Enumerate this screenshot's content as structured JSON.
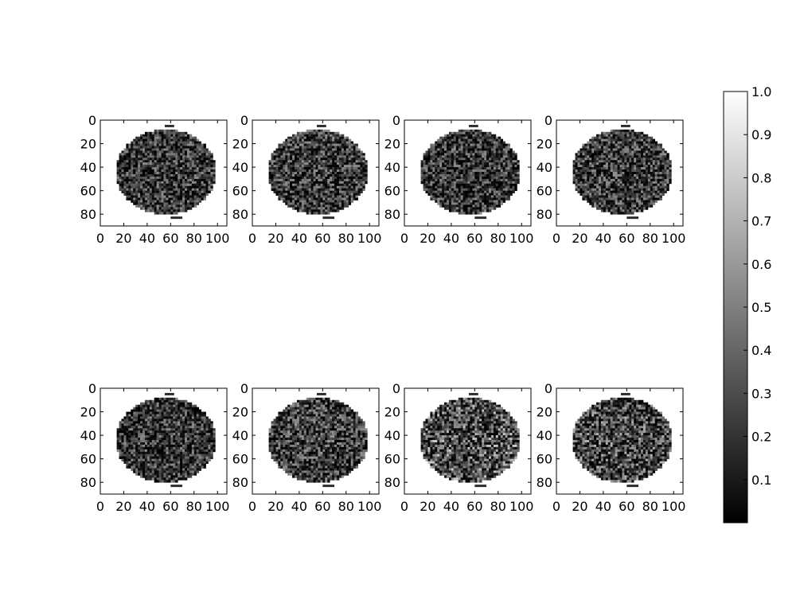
{
  "chart_data": {
    "type": "heatmap",
    "colormap": "gray",
    "layout": {
      "rows": 2,
      "cols": 4
    },
    "panels": [
      {
        "index": 1,
        "xlim": [
          0,
          108
        ],
        "ylim": [
          90,
          0
        ],
        "xticks": [
          0,
          20,
          40,
          60,
          80,
          100
        ],
        "yticks": [
          0,
          20,
          40,
          60,
          80
        ],
        "mean_intensity": 0.22
      },
      {
        "index": 2,
        "xlim": [
          0,
          108
        ],
        "ylim": [
          90,
          0
        ],
        "xticks": [
          0,
          20,
          40,
          60,
          80,
          100
        ],
        "yticks": [
          0,
          20,
          40,
          60,
          80
        ],
        "mean_intensity": 0.24
      },
      {
        "index": 3,
        "xlim": [
          0,
          108
        ],
        "ylim": [
          90,
          0
        ],
        "xticks": [
          0,
          20,
          40,
          60,
          80,
          100
        ],
        "yticks": [
          0,
          20,
          40,
          60,
          80
        ],
        "mean_intensity": 0.22
      },
      {
        "index": 4,
        "xlim": [
          0,
          108
        ],
        "ylim": [
          90,
          0
        ],
        "xticks": [
          0,
          20,
          40,
          60,
          80,
          100
        ],
        "yticks": [
          0,
          20,
          40,
          60,
          80
        ],
        "mean_intensity": 0.24
      },
      {
        "index": 5,
        "xlim": [
          0,
          108
        ],
        "ylim": [
          90,
          0
        ],
        "xticks": [
          0,
          20,
          40,
          60,
          80,
          100
        ],
        "yticks": [
          0,
          20,
          40,
          60,
          80
        ],
        "mean_intensity": 0.21
      },
      {
        "index": 6,
        "xlim": [
          0,
          108
        ],
        "ylim": [
          90,
          0
        ],
        "xticks": [
          0,
          20,
          40,
          60,
          80,
          100
        ],
        "yticks": [
          0,
          20,
          40,
          60,
          80
        ],
        "mean_intensity": 0.26
      },
      {
        "index": 7,
        "xlim": [
          0,
          108
        ],
        "ylim": [
          90,
          0
        ],
        "xticks": [
          0,
          20,
          40,
          60,
          80,
          100
        ],
        "yticks": [
          0,
          20,
          40,
          60,
          80
        ],
        "mean_intensity": 0.34
      },
      {
        "index": 8,
        "xlim": [
          0,
          108
        ],
        "ylim": [
          90,
          0
        ],
        "xticks": [
          0,
          20,
          40,
          60,
          80,
          100
        ],
        "yticks": [
          0,
          20,
          40,
          60,
          80
        ],
        "mean_intensity": 0.3
      }
    ],
    "colorbar": {
      "range": [
        0,
        1.0
      ],
      "ticks": [
        0.1,
        0.2,
        0.3,
        0.4,
        0.5,
        0.6,
        0.7,
        0.8,
        0.9,
        1.0
      ],
      "tick_labels": [
        "0.1",
        "0.2",
        "0.3",
        "0.4",
        "0.5",
        "0.6",
        "0.7",
        "0.8",
        "0.9",
        "1.0"
      ]
    }
  }
}
